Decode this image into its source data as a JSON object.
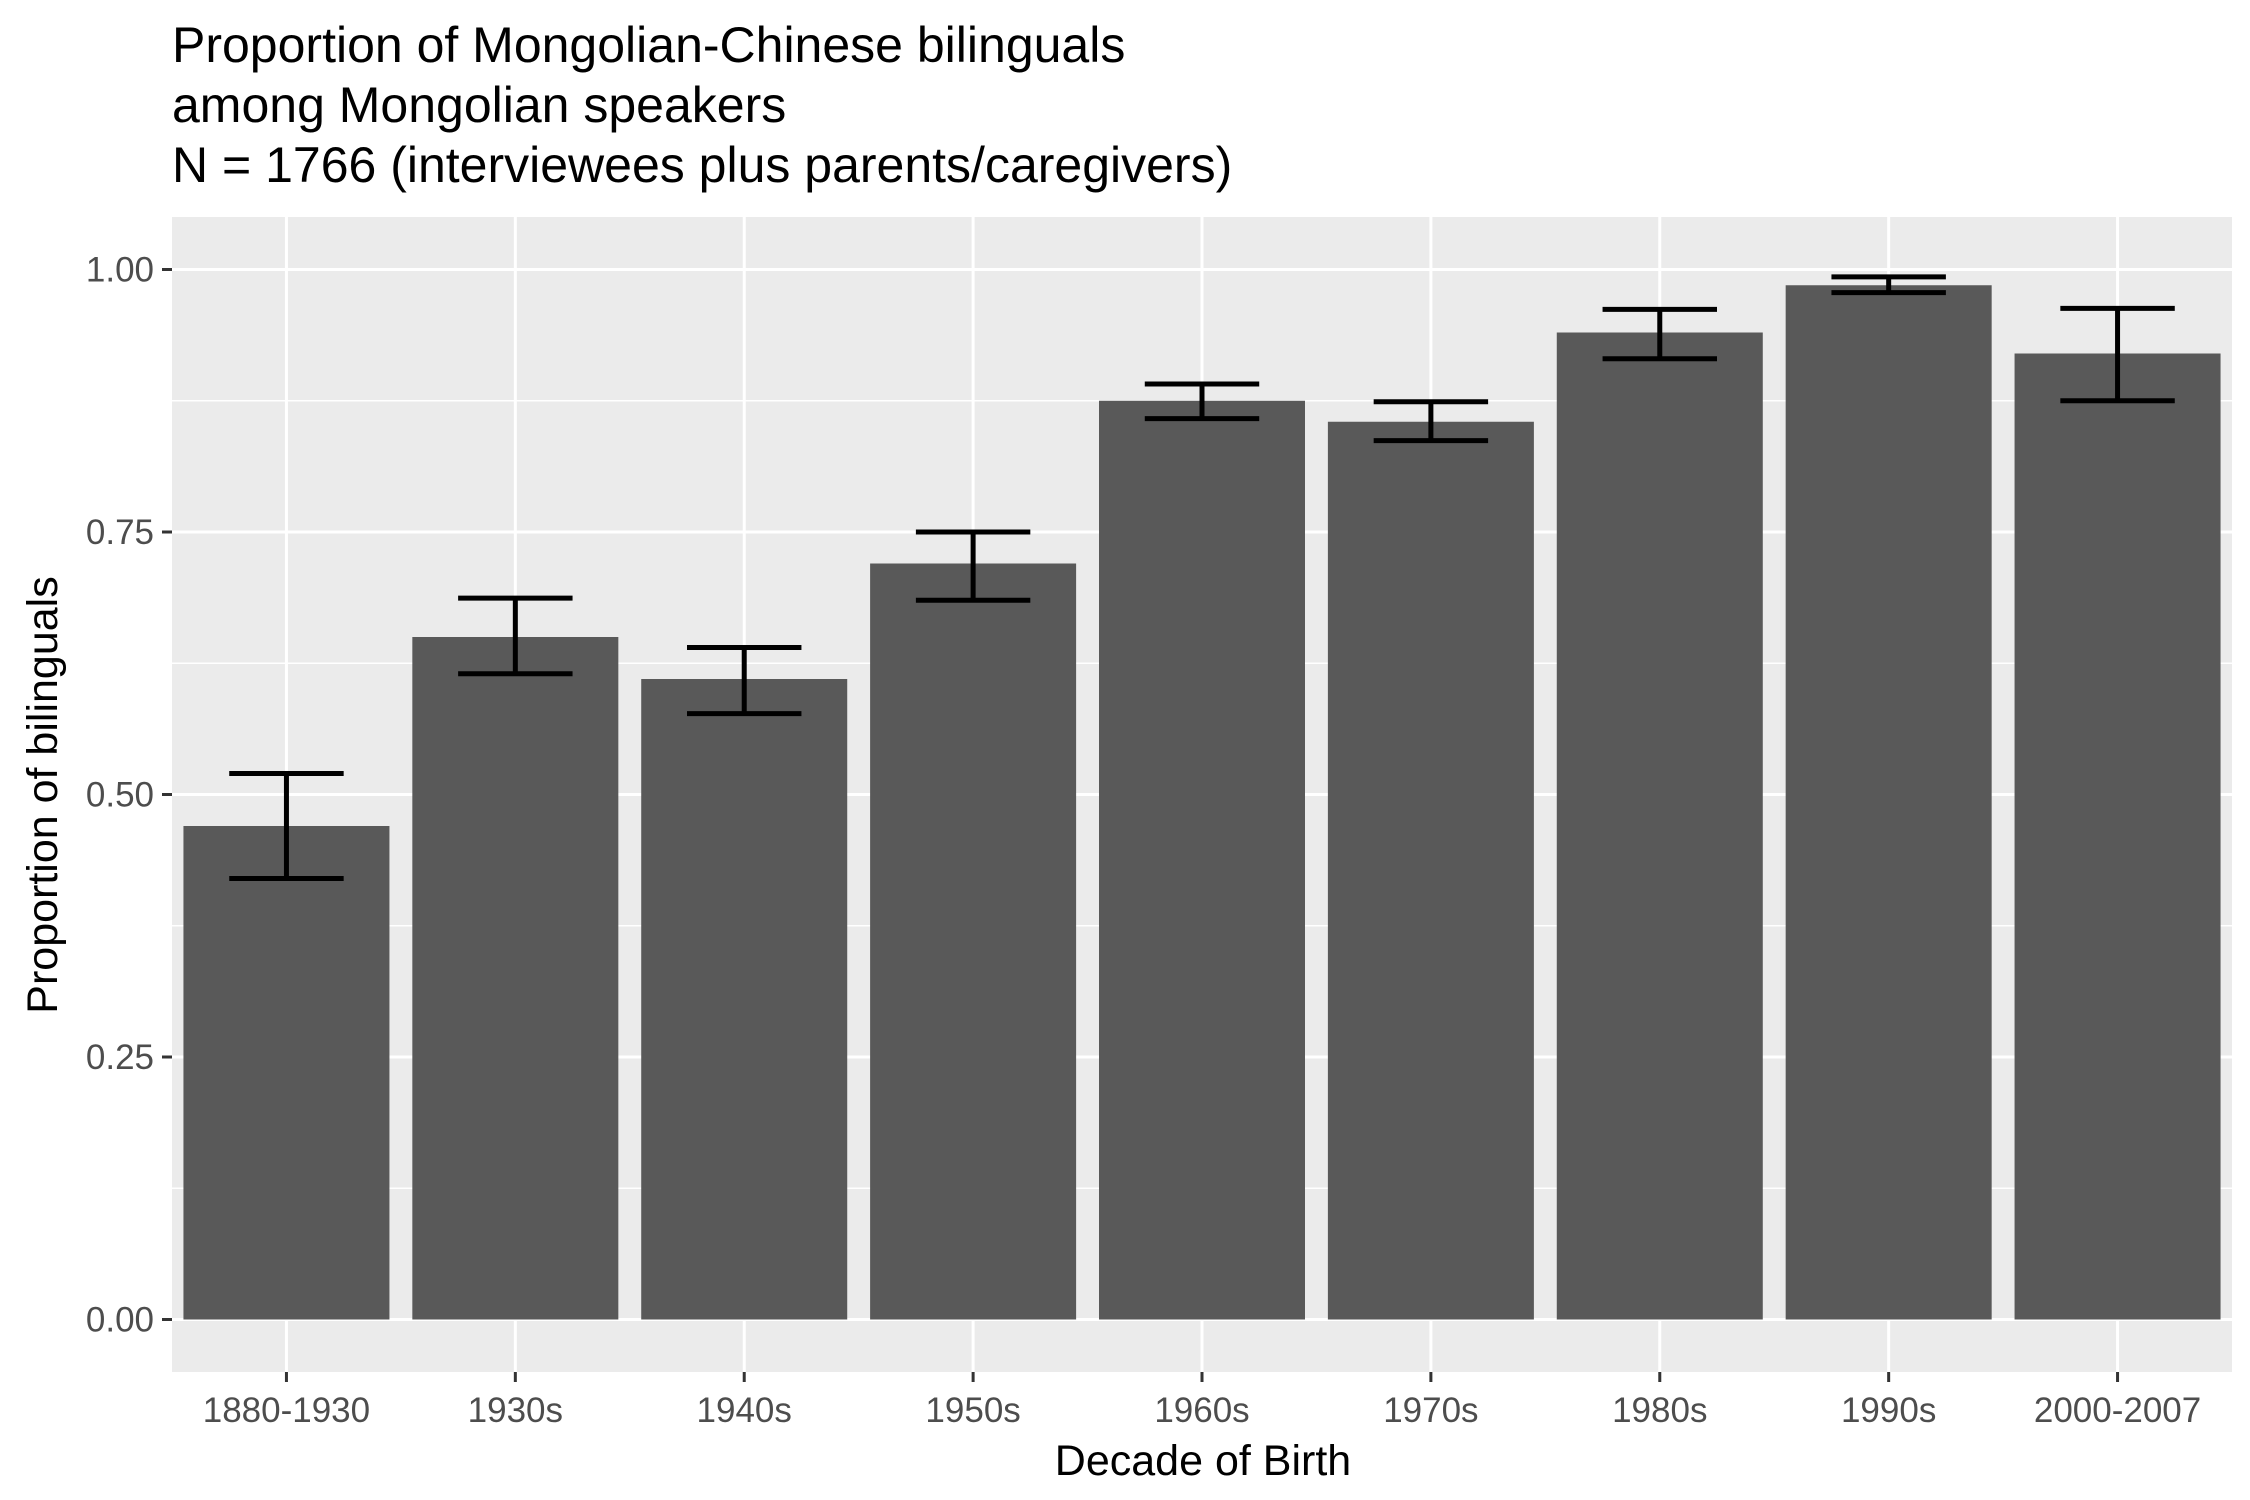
{
  "chart_data": {
    "type": "bar",
    "title": [
      "Proportion of Mongolian-Chinese bilinguals",
      "among Mongolian speakers",
      "N = 1766 (interviewees plus parents/caregivers)"
    ],
    "xlabel": "Decade of Birth",
    "ylabel": "Proportion of bilinguals",
    "categories": [
      "1880-1930",
      "1930s",
      "1940s",
      "1950s",
      "1960s",
      "1970s",
      "1980s",
      "1990s",
      "2000-2007"
    ],
    "values": [
      0.47,
      0.65,
      0.61,
      0.72,
      0.875,
      0.855,
      0.94,
      0.985,
      0.92
    ],
    "error_low": [
      0.42,
      0.615,
      0.577,
      0.685,
      0.858,
      0.837,
      0.915,
      0.978,
      0.875
    ],
    "error_high": [
      0.52,
      0.687,
      0.64,
      0.75,
      0.891,
      0.874,
      0.962,
      0.993,
      0.963
    ],
    "ylim": [
      -0.05,
      1.05
    ],
    "yticks": [
      0.0,
      0.25,
      0.5,
      0.75,
      1.0
    ],
    "ytick_labels": [
      "0.00",
      "0.25",
      "0.50",
      "0.75",
      "1.00"
    ],
    "grid": true,
    "legend": "none",
    "colors": {
      "panel": "#ebebeb",
      "grid": "#ffffff",
      "bar": "#595959",
      "error_bar": "#000000",
      "tick": "#333333",
      "tick_text": "#4d4d4d"
    }
  }
}
